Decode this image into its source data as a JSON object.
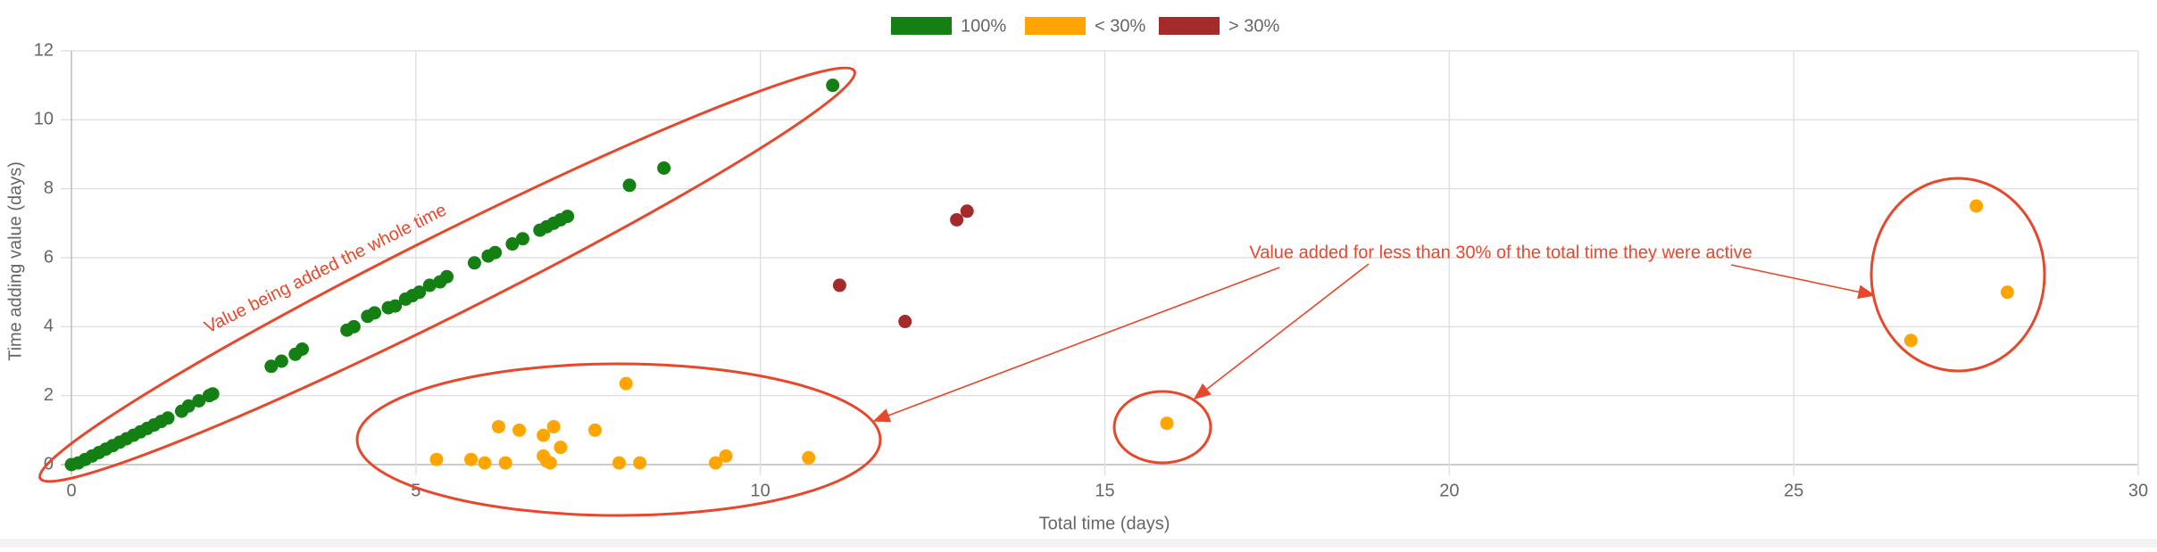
{
  "chart_data": {
    "type": "scatter",
    "x_label": "Total time (days)",
    "y_label": "Time adding value (days)",
    "xlim": [
      0,
      30
    ],
    "xticks": [
      0,
      5,
      10,
      15,
      20,
      25,
      30
    ],
    "ylim": [
      0,
      12
    ],
    "yticks": [
      0,
      2,
      4,
      6,
      8,
      10,
      12
    ],
    "grid": true,
    "legend": "top",
    "series": [
      {
        "name": "100%",
        "color": "#148014",
        "x": [
          0,
          0.1,
          0.2,
          0.3,
          0.4,
          0.5,
          0.6,
          0.7,
          0.8,
          0.9,
          1.0,
          1.1,
          1.2,
          1.3,
          1.4,
          1.6,
          1.7,
          1.85,
          2.0,
          2.05,
          2.9,
          3.05,
          3.25,
          3.35,
          4.0,
          4.1,
          4.3,
          4.4,
          4.6,
          4.7,
          4.85,
          4.95,
          5.05,
          5.2,
          5.35,
          5.45,
          5.85,
          6.05,
          6.15,
          6.4,
          6.55,
          6.8,
          6.9,
          7.0,
          7.1,
          7.2,
          8.1,
          8.6,
          11.05
        ],
        "values": [
          0,
          0.05,
          0.15,
          0.25,
          0.35,
          0.45,
          0.55,
          0.65,
          0.75,
          0.85,
          0.95,
          1.05,
          1.15,
          1.25,
          1.35,
          1.55,
          1.7,
          1.85,
          2.0,
          2.05,
          2.85,
          3.0,
          3.2,
          3.35,
          3.9,
          4.0,
          4.3,
          4.4,
          4.55,
          4.6,
          4.8,
          4.9,
          5.0,
          5.2,
          5.3,
          5.45,
          5.85,
          6.05,
          6.15,
          6.4,
          6.55,
          6.8,
          6.9,
          7.0,
          7.1,
          7.2,
          8.1,
          8.6,
          11.0
        ]
      },
      {
        "name": "< 30%",
        "color": "#ffa500",
        "x": [
          5.3,
          5.8,
          6.0,
          6.2,
          6.3,
          6.5,
          6.85,
          6.85,
          6.9,
          6.95,
          7.0,
          7.1,
          7.6,
          7.95,
          8.05,
          8.25,
          9.35,
          9.5,
          10.7,
          15.9,
          26.7,
          27.65,
          28.1
        ],
        "values": [
          0.15,
          0.15,
          0.05,
          1.1,
          0.05,
          1.0,
          0.85,
          0.25,
          0.1,
          0.05,
          1.1,
          0.5,
          1.0,
          0.05,
          2.35,
          0.05,
          0.05,
          0.25,
          0.2,
          1.2,
          3.6,
          7.5,
          5.0
        ]
      },
      {
        "name": "> 30%",
        "color": "#a52a2a",
        "x": [
          11.15,
          12.1,
          12.85,
          13.0
        ],
        "values": [
          5.2,
          4.15,
          7.1,
          7.35
        ]
      }
    ],
    "annotations": [
      "Value being added the whole time",
      "Value added for less than 30% of the total time they were active"
    ]
  }
}
